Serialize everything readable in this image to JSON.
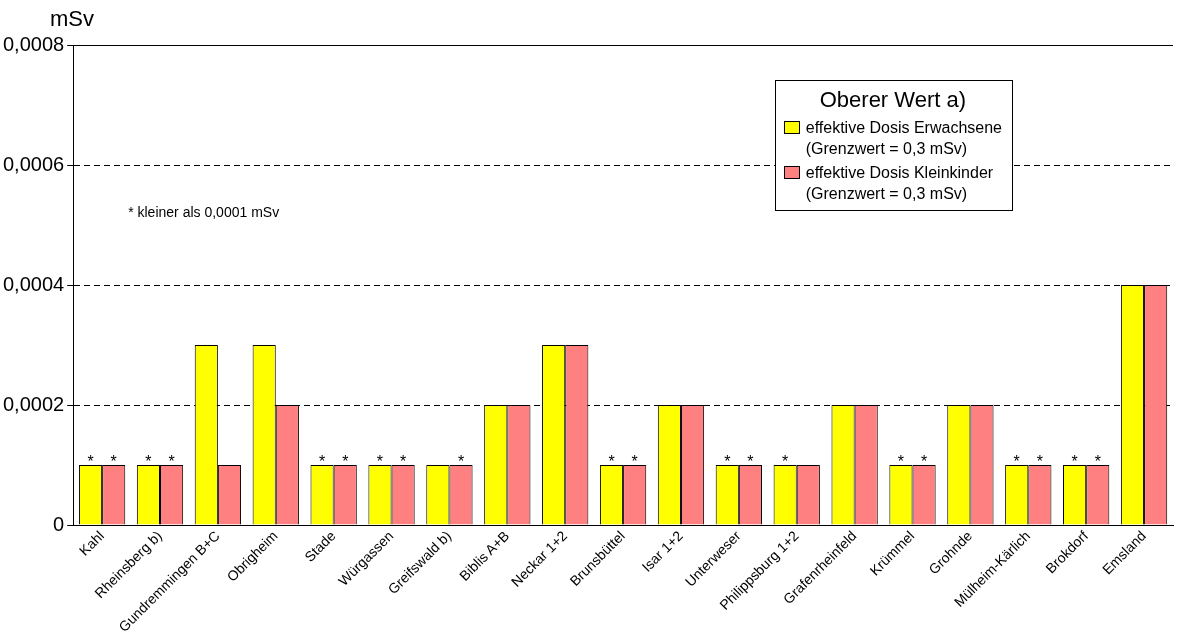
{
  "chart_data": {
    "type": "bar",
    "ylabel": "mSv",
    "legend_title": "Oberer Wert a)",
    "annotations": [
      "* kleiner als 0,0001 mSv"
    ],
    "categories": [
      "Kahl",
      "Rheinsberg b)",
      "Gundremmingen B+C",
      "Obrigheim",
      "Stade",
      "Würgassen",
      "Greifswald b)",
      "Biblis A+B",
      "Neckar 1+2",
      "Brunsbüttel",
      "Isar 1+2",
      "Unterweser",
      "Philippsburg 1+2",
      "Grafenrheinfeld",
      "Krümmel",
      "Grohnde",
      "Mülheim-Kärlich",
      "Brokdorf",
      "Emsland"
    ],
    "series": [
      {
        "name": "effektive Dosis Erwachsene\n(Grenzwert = 0,3 mSv)",
        "color": "#ffff00",
        "values": [
          0.0001,
          0.0001,
          0.0003,
          0.0003,
          0.0001,
          0.0001,
          0.0001,
          0.0002,
          0.0003,
          0.0001,
          0.0002,
          0.0001,
          0.0001,
          0.0002,
          0.0001,
          0.0002,
          0.0001,
          0.0001,
          0.0004
        ],
        "value_labels": [
          "*",
          "*",
          null,
          null,
          "*",
          "*",
          null,
          null,
          null,
          "*",
          null,
          "*",
          "*",
          null,
          "*",
          null,
          "*",
          "*",
          null
        ]
      },
      {
        "name": "effektive Dosis Kleinkinder\n(Grenzwert = 0,3 mSv)",
        "color": "#ff8080",
        "values": [
          0.0001,
          0.0001,
          0.0001,
          0.0002,
          0.0001,
          0.0001,
          0.0001,
          0.0002,
          0.0003,
          0.0001,
          0.0002,
          0.0001,
          0.0001,
          0.0002,
          0.0001,
          0.0002,
          0.0001,
          0.0001,
          0.0004
        ],
        "value_labels": [
          "*",
          "*",
          null,
          null,
          "*",
          "*",
          "*",
          null,
          null,
          "*",
          null,
          "*",
          null,
          null,
          "*",
          null,
          "*",
          "*",
          null
        ]
      }
    ],
    "ylim": [
      0,
      0.0008
    ],
    "yticks": [
      0,
      {
        "value": 0.0002,
        "label": "0,0002"
      },
      {
        "value": 0.0004,
        "label": "0,0004"
      },
      {
        "value": 0.0006,
        "label": "0,0006"
      },
      {
        "value": 0.0008,
        "label": "0,0008"
      }
    ],
    "grid": "y",
    "legend": "top right"
  }
}
